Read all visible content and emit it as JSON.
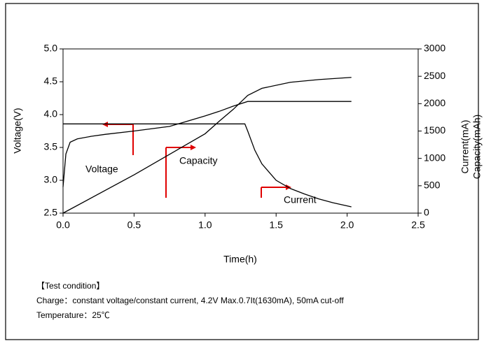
{
  "chart_data": {
    "type": "line",
    "xlabel": "Time(h)",
    "ylabel": "Voltage(V)",
    "y2labels": [
      "Current(mA)",
      "Capacity(mAh)"
    ],
    "xlim": [
      0,
      2.5
    ],
    "xticks": [
      {
        "value": 0,
        "label": "0.0"
      },
      0.5,
      {
        "value": 1,
        "label": "1.0"
      },
      1.5,
      {
        "value": 2,
        "label": "2.0"
      },
      2.5
    ],
    "ylim": [
      2.5,
      5
    ],
    "yticks": [
      2.5,
      {
        "value": 3,
        "label": "3.0"
      },
      3.5,
      {
        "value": 4,
        "label": "4.0"
      },
      4.5,
      {
        "value": 5,
        "label": "5.0"
      }
    ],
    "y2lim": [
      0,
      3000
    ],
    "y2ticks": [
      0,
      500,
      1000,
      1500,
      2000,
      2500,
      3000
    ],
    "series": [
      {
        "name": "Voltage",
        "color": "#000000",
        "x": [
          0,
          0.02,
          0.05,
          0.1,
          0.2,
          0.3,
          0.5,
          0.75,
          1.0,
          1.1,
          1.2,
          1.3,
          1.5,
          1.8,
          2.03
        ],
        "values": [
          2.9,
          3.4,
          3.58,
          3.63,
          3.67,
          3.7,
          3.75,
          3.82,
          3.98,
          4.05,
          4.13,
          4.2,
          4.2,
          4.2,
          4.2
        ]
      },
      {
        "name": "Current",
        "color": "#000000",
        "axis": "y2",
        "x": [
          0,
          0.5,
          1.0,
          1.28,
          1.3,
          1.35,
          1.4,
          1.5,
          1.6,
          1.7,
          1.8,
          1.9,
          2.03
        ],
        "values": [
          1630,
          1630,
          1630,
          1630,
          1500,
          1150,
          900,
          600,
          450,
          350,
          260,
          190,
          115
        ]
      },
      {
        "name": "Capacity",
        "color": "#000000",
        "axis": "y2",
        "x": [
          0,
          0.5,
          1.0,
          1.1,
          1.2,
          1.3,
          1.4,
          1.6,
          1.8,
          2.03
        ],
        "values": [
          0,
          700,
          1450,
          1680,
          1900,
          2150,
          2280,
          2390,
          2440,
          2480
        ]
      }
    ],
    "footnotes": [
      "【Test condition】",
      "Charge：constant voltage/constant current,   4.2V Max.0.7It(1630mA), 50mA cut-off",
      "Temperature：25℃"
    ]
  }
}
